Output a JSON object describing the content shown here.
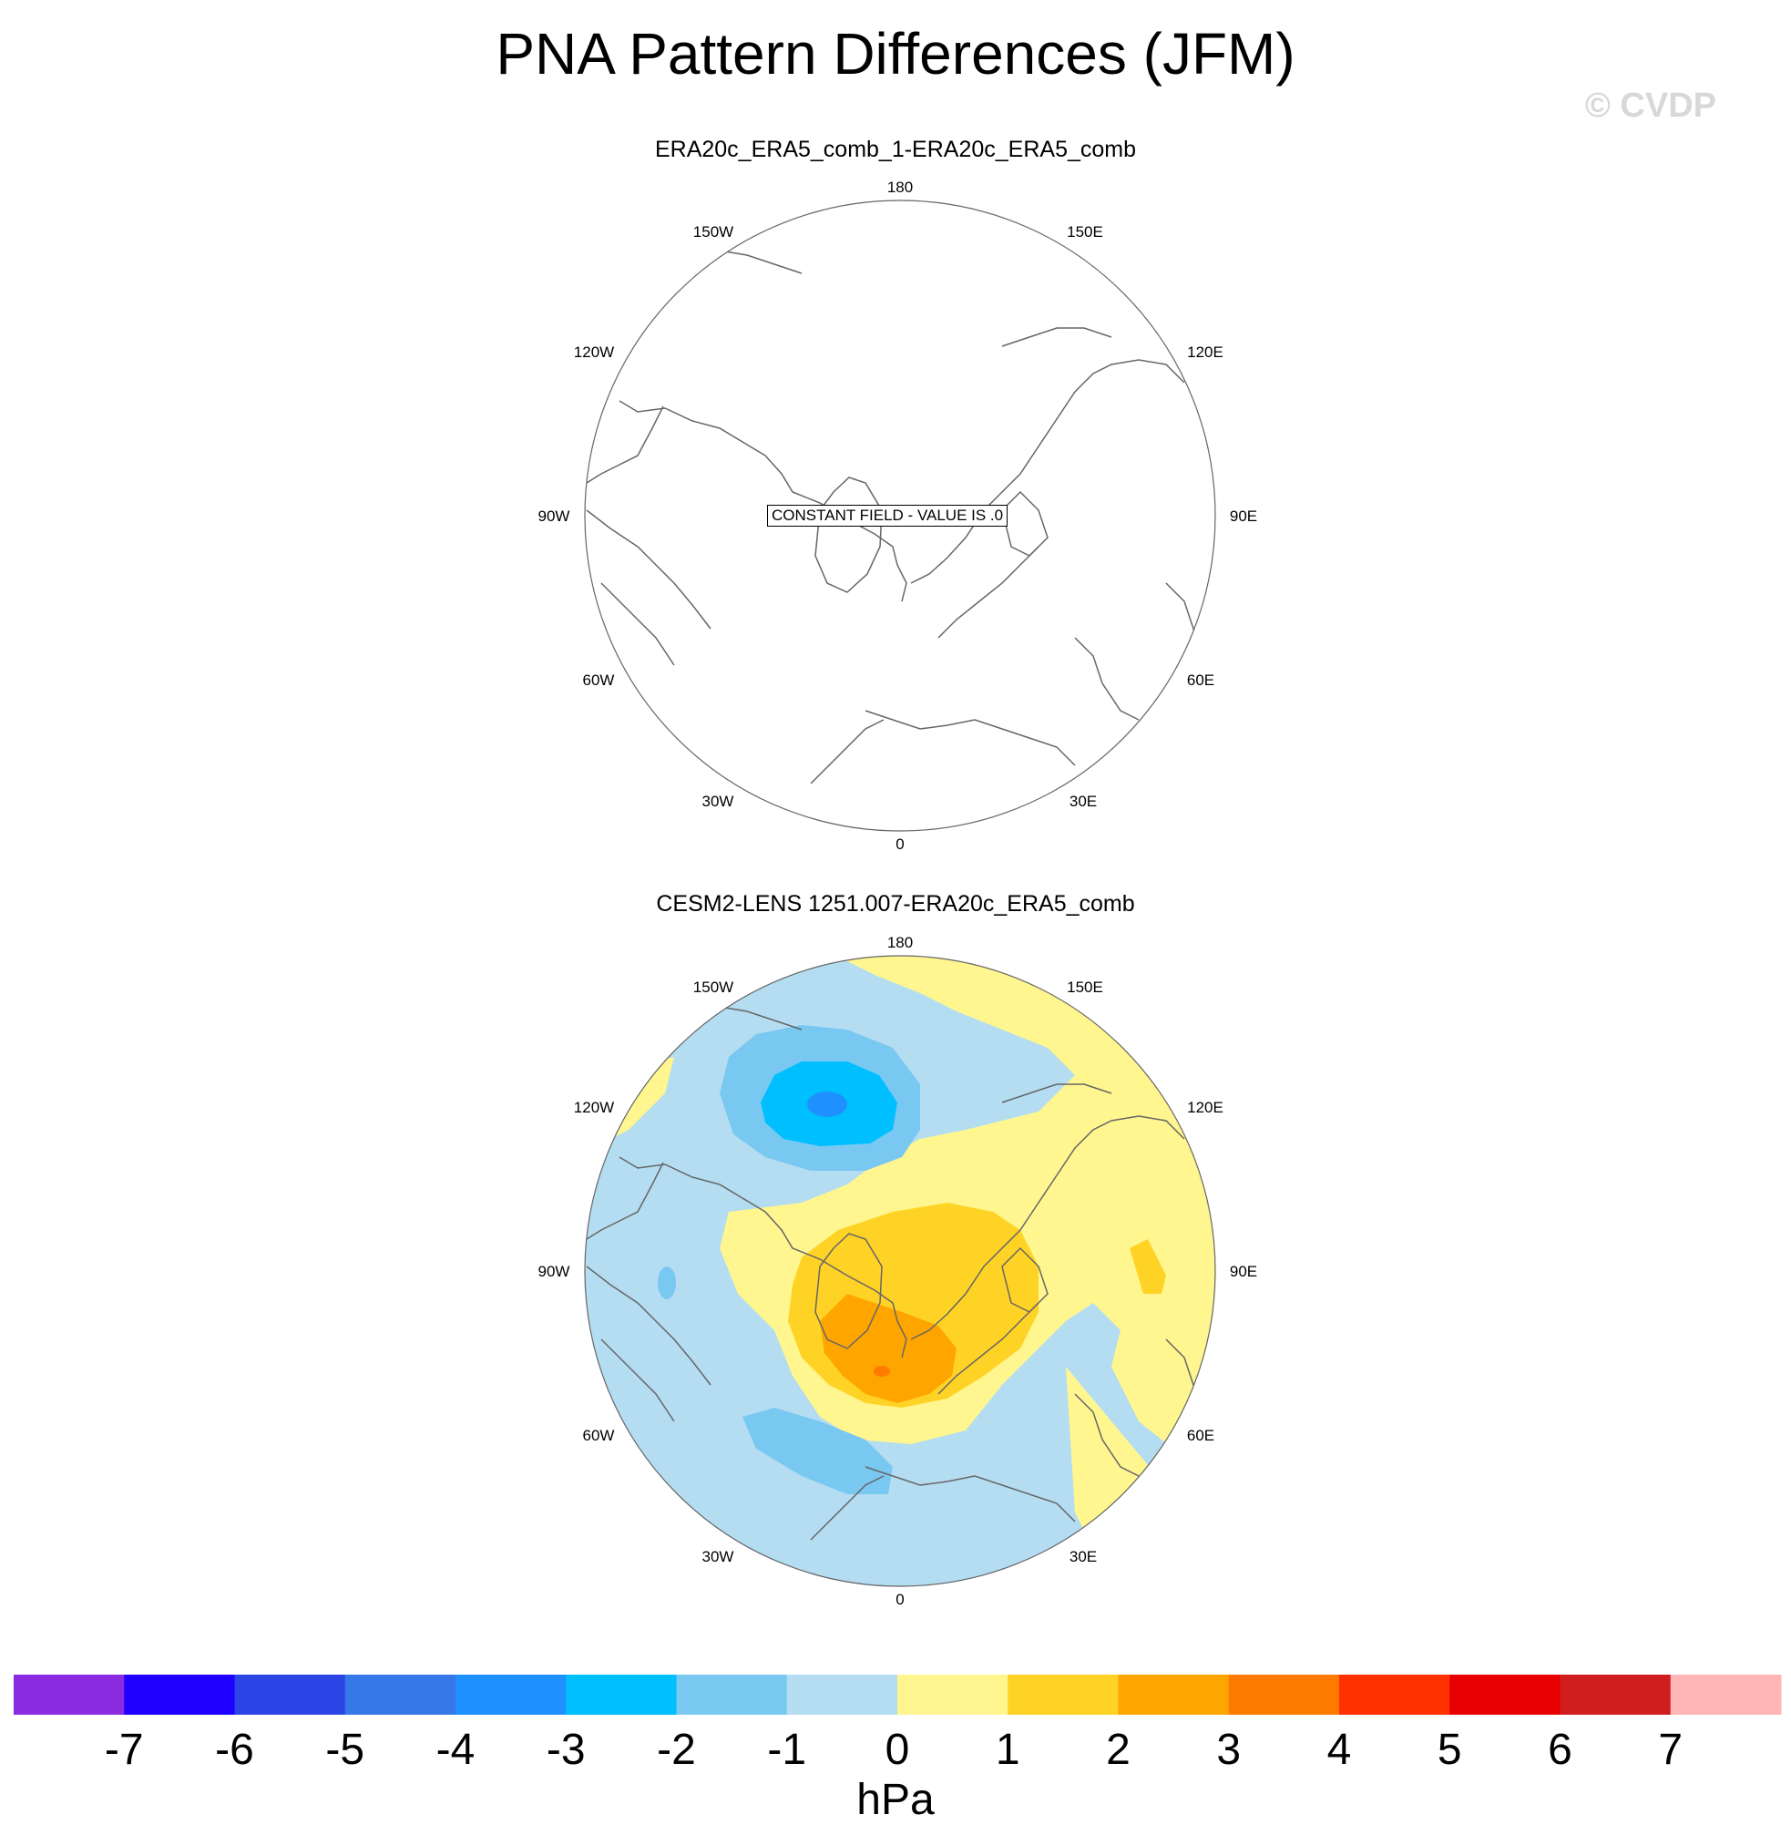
{
  "title": "PNA Pattern Differences (JFM)",
  "watermark": "© CVDP",
  "panels": [
    {
      "title": "ERA20c_ERA5_comb_1-ERA20c_ERA5_comb",
      "message": "CONSTANT FIELD - VALUE IS .0"
    },
    {
      "title": "CESM2-LENS 1251.007-ERA20c_ERA5_comb"
    }
  ],
  "longitude_labels": [
    "180",
    "150E",
    "120E",
    "90E",
    "60E",
    "30E",
    "0",
    "30W",
    "60W",
    "90W",
    "120W",
    "150W"
  ],
  "colorbar": {
    "units": "hPa",
    "ticks": [
      "-7",
      "-6",
      "-5",
      "-4",
      "-3",
      "-2",
      "-1",
      "0",
      "1",
      "2",
      "3",
      "4",
      "5",
      "6",
      "7"
    ],
    "colors": [
      "#8a2be2",
      "#1e00ff",
      "#2b45e6",
      "#3778e8",
      "#1e90ff",
      "#00bfff",
      "#79c8f2",
      "#b4ddf2",
      "#fff68f",
      "#ffd326",
      "#ffa500",
      "#ff7b00",
      "#ff3100",
      "#e80000",
      "#d01d1d",
      "#ffb6b6"
    ]
  }
}
